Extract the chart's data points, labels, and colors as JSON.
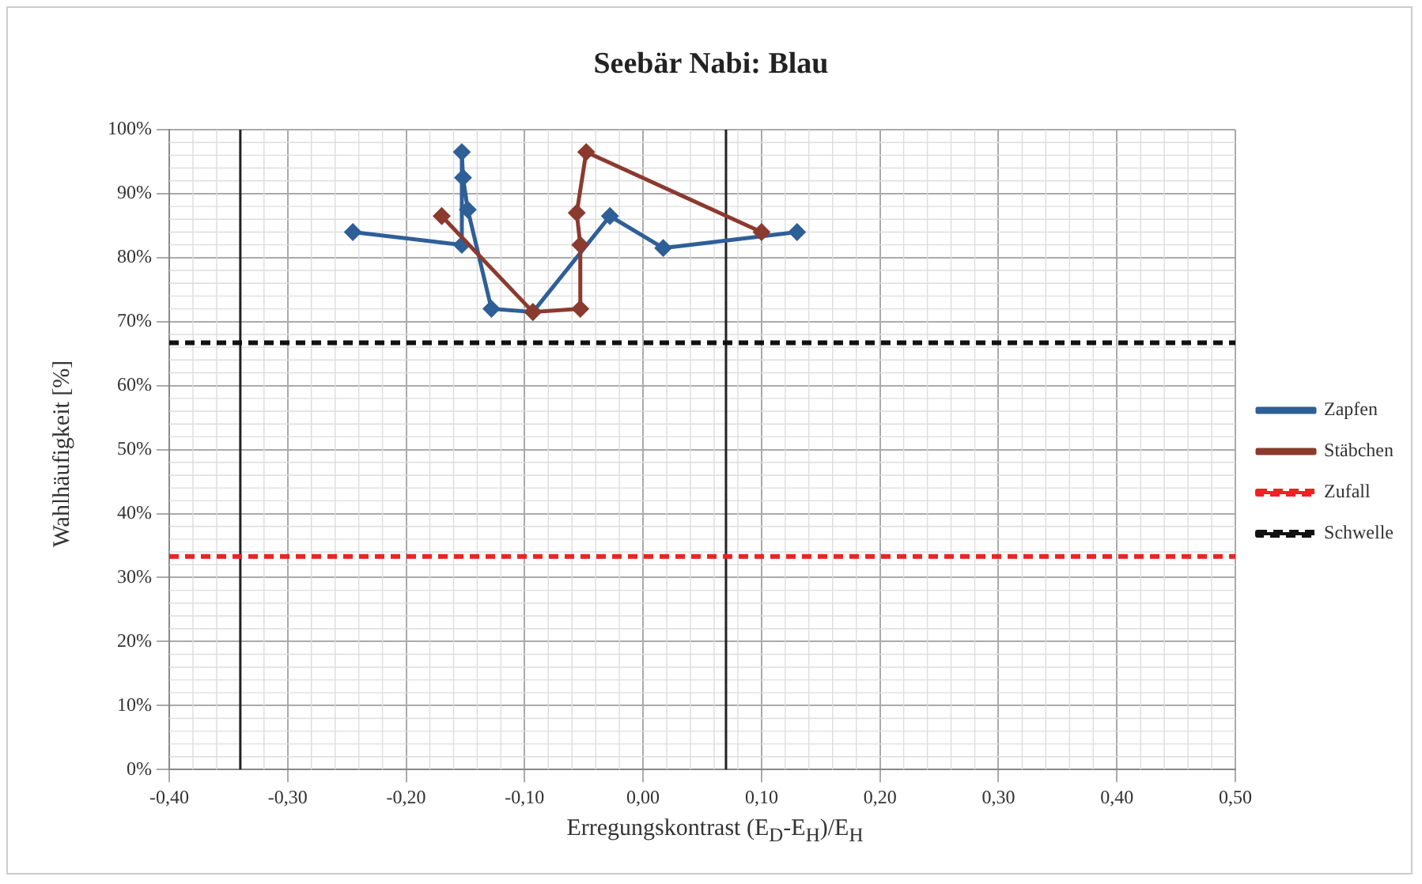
{
  "chart_data": {
    "type": "line",
    "title": "Seebär Nabi: Blau",
    "xlabel": "Erregungskontrast (E$_{D}$-E$_{H}$)/E$_{H}$",
    "ylabel": "Wahlhäufigkeit [%]",
    "series": [
      {
        "name": "Zapfen",
        "color": "#2f5f97",
        "marker": "diamond",
        "x": [
          -0.245,
          -0.153,
          -0.153,
          -0.152,
          -0.148,
          -0.128,
          -0.093,
          -0.028,
          0.017,
          0.13
        ],
        "values": [
          84,
          82,
          96.5,
          92.5,
          87.5,
          72,
          71.5,
          86.5,
          81.5,
          84
        ]
      },
      {
        "name": "Stäbchen",
        "color": "#8b3a2f",
        "marker": "diamond",
        "x": [
          -0.17,
          -0.093,
          -0.053,
          -0.053,
          -0.056,
          -0.048,
          0.1
        ],
        "values": [
          86.5,
          71.5,
          72,
          82,
          87,
          96.5,
          84
        ]
      },
      {
        "name": "Zufall",
        "color": "#ee2222",
        "marker": "none",
        "line_style": "dashed",
        "x": [
          -0.4,
          0.5
        ],
        "values": [
          33.3,
          33.3
        ]
      },
      {
        "name": "Schwelle",
        "color": "#111111",
        "marker": "none",
        "line_style": "dashed",
        "x": [
          -0.4,
          0.5
        ],
        "values": [
          66.7,
          66.7
        ]
      }
    ],
    "xlim": [
      -0.4,
      0.5
    ],
    "xticks": [
      {
        "value": -0.4,
        "label": "-0,40"
      },
      {
        "value": -0.3,
        "label": "-0,30"
      },
      {
        "value": -0.2,
        "label": "-0,20"
      },
      {
        "value": -0.1,
        "label": "-0,10"
      },
      {
        "value": 0,
        "label": "0,00"
      },
      {
        "value": 0.1,
        "label": "0,10"
      },
      {
        "value": 0.2,
        "label": "0,20"
      },
      {
        "value": 0.3,
        "label": "0,30"
      },
      {
        "value": 0.4,
        "label": "0,40"
      },
      {
        "value": 0.5,
        "label": "0,50"
      }
    ],
    "ylim": [
      0,
      100
    ],
    "yticks": [
      {
        "value": 0,
        "label": "0%"
      },
      {
        "value": 10,
        "label": "10%"
      },
      {
        "value": 20,
        "label": "20%"
      },
      {
        "value": 30,
        "label": "30%"
      },
      {
        "value": 40,
        "label": "40%"
      },
      {
        "value": 50,
        "label": "50%"
      },
      {
        "value": 60,
        "label": "60%"
      },
      {
        "value": 70,
        "label": "70%"
      },
      {
        "value": 80,
        "label": "80%"
      },
      {
        "value": 90,
        "label": "90%"
      },
      {
        "value": 100,
        "label": "100%"
      }
    ],
    "ref_lines": [
      {
        "axis": "x",
        "value": -0.34,
        "color": "#222222"
      },
      {
        "axis": "x",
        "value": 0.07,
        "color": "#222222"
      }
    ],
    "grid": true,
    "legend": "right"
  }
}
